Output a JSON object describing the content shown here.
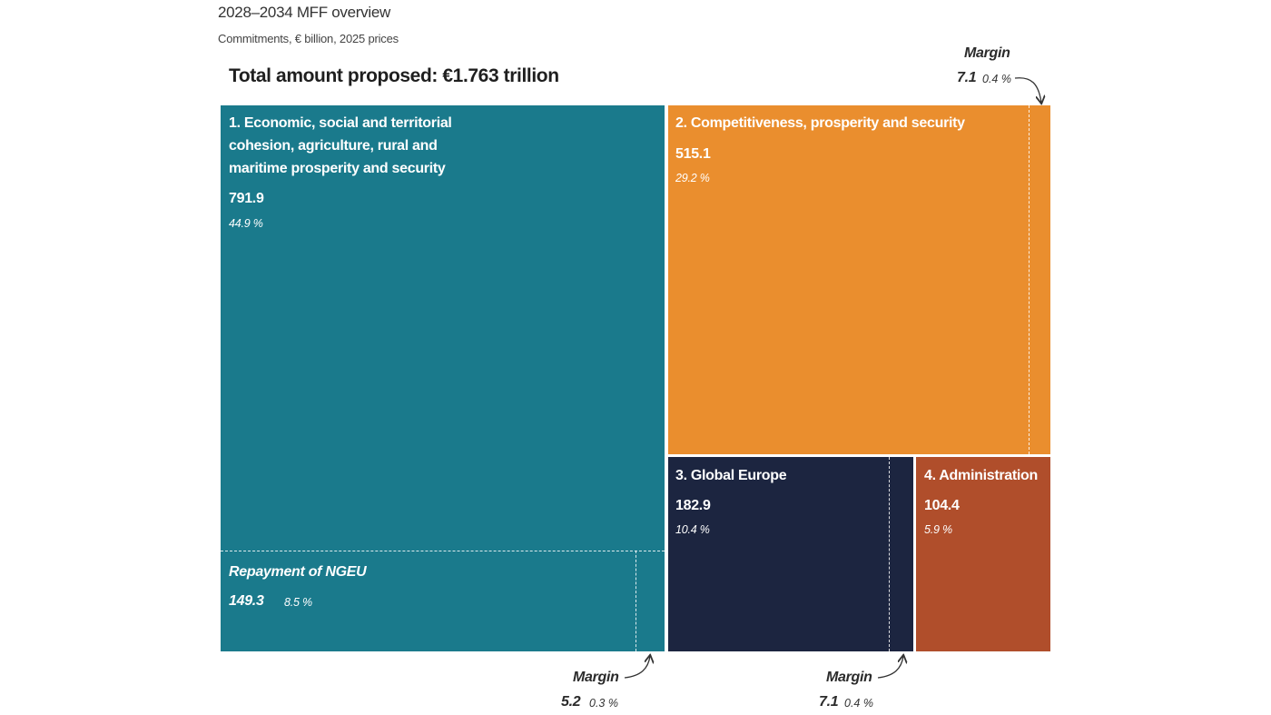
{
  "header": {
    "title": "2028–2034 MFF overview",
    "subtitle": "Commitments, € billion, 2025 prices",
    "total": "Total amount proposed: €1.763 trillion"
  },
  "colors": {
    "cohesion": "#1a7a8c",
    "competitiveness": "#ea8e2e",
    "global_europe": "#1c2540",
    "administration": "#b04e2b"
  },
  "chart_data": {
    "type": "treemap",
    "title": "2028–2034 MFF overview",
    "subtitle": "Commitments, € billion, 2025 prices",
    "total": "Total amount proposed: €1.763 trillion",
    "blocks": [
      {
        "name": "1. Economic, social and territorial cohesion, agriculture, rural and maritime prosperity and security",
        "name_lines": [
          "1. Economic, social and territorial",
          "cohesion, agriculture, rural and",
          "maritime prosperity and security"
        ],
        "value": 791.9,
        "value_label": "791.9",
        "share": "44.9 %",
        "sub": [
          {
            "name": "Repayment of NGEU",
            "value": 149.3,
            "value_label": "149.3",
            "share": "8.5 %"
          },
          {
            "name": "Margin",
            "value": 5.2,
            "value_label": "5.2",
            "share": "0.3 %"
          }
        ]
      },
      {
        "name": "2. Competitiveness, prosperity and security",
        "value": 515.1,
        "value_label": "515.1",
        "share": "29.2 %",
        "sub": [
          {
            "name": "Margin",
            "value": 7.1,
            "value_label": "7.1",
            "share": "0.4 %"
          }
        ]
      },
      {
        "name": "3. Global Europe",
        "value": 182.9,
        "value_label": "182.9",
        "share": "10.4 %",
        "sub": [
          {
            "name": "Margin",
            "value": 7.1,
            "value_label": "7.1",
            "share": "0.4 %"
          }
        ]
      },
      {
        "name": "4. Administration",
        "value": 104.4,
        "value_label": "104.4",
        "share": "5.9 %",
        "sub": []
      }
    ]
  }
}
